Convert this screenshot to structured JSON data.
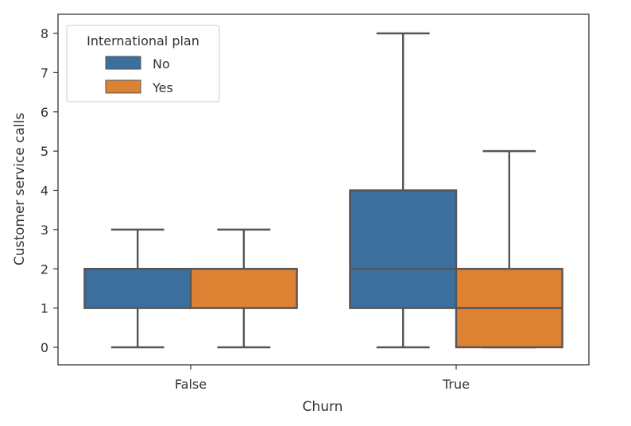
{
  "chart_data": {
    "type": "box",
    "xlabel": "Churn",
    "ylabel": "Customer service calls",
    "categories": [
      "False",
      "True"
    ],
    "ylim": [
      -0.42,
      8.42
    ],
    "yticks": [
      0,
      1,
      2,
      3,
      4,
      5,
      6,
      7,
      8
    ],
    "grid": false,
    "legend": {
      "title": "International plan",
      "placement": "top-left"
    },
    "series": [
      {
        "name": "No",
        "color": "#3a6f9e",
        "boxes": [
          {
            "category": "False",
            "whisker_low": 0,
            "q1": 1,
            "median": 2,
            "q3": 2,
            "whisker_high": 3
          },
          {
            "category": "True",
            "whisker_low": 0,
            "q1": 1,
            "median": 2,
            "q3": 4,
            "whisker_high": 8
          }
        ]
      },
      {
        "name": "Yes",
        "color": "#dd8133",
        "boxes": [
          {
            "category": "False",
            "whisker_low": 0,
            "q1": 1,
            "median": 2,
            "q3": 2,
            "whisker_high": 3
          },
          {
            "category": "True",
            "whisker_low": 0,
            "q1": 0,
            "median": 1,
            "q3": 2,
            "whisker_high": 5
          }
        ]
      }
    ]
  }
}
